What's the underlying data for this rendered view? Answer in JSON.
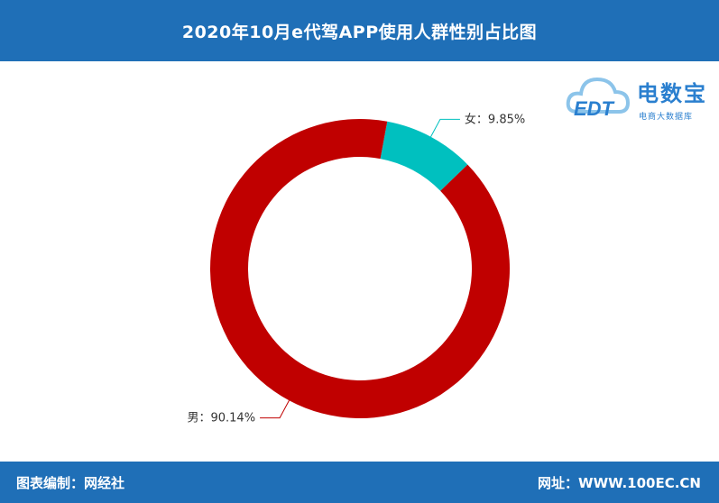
{
  "header": {
    "title": "2020年10月e代驾APP使用人群性别占比图"
  },
  "logo": {
    "brand": "电数宝",
    "sub": "电商大数据库",
    "mark": "EDT"
  },
  "footer": {
    "left": "图表编制：网经社",
    "right": "网址：WWW.100EC.CN"
  },
  "colors": {
    "header": "#1f6fb7",
    "male": "#c00000",
    "female": "#00c0bf",
    "label_line_male": "#c00000",
    "label_line_female": "#00c0bf"
  },
  "chart_data": {
    "type": "pie",
    "donut": true,
    "title": "2020年10月e代驾APP使用人群性别占比图",
    "slices": [
      {
        "name": "女",
        "value": 9.85,
        "label": "女：9.85%",
        "color": "#00c0bf"
      },
      {
        "name": "男",
        "value": 90.14,
        "label": "男：90.14%",
        "color": "#c00000"
      }
    ],
    "start_angle_deg": 10.5,
    "direction": "clockwise"
  }
}
